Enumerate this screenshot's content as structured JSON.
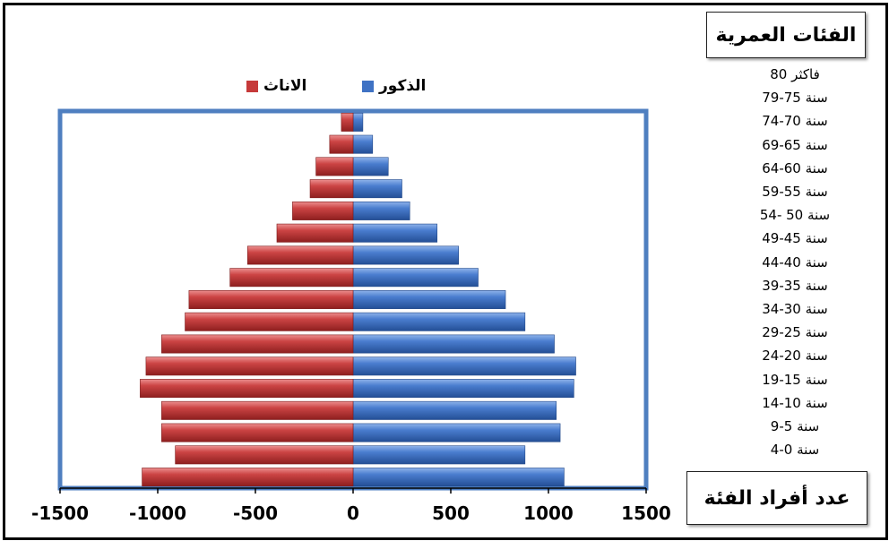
{
  "chart_data": {
    "type": "bar",
    "orientation": "horizontal",
    "title": "الفئات العمرية",
    "xlabel": "عدد أفراد الفئة",
    "xlim": [
      -1500,
      1500
    ],
    "x_ticks": [
      -1500,
      -1000,
      -500,
      0,
      500,
      1000,
      1500
    ],
    "x_tick_labels": [
      "-1500",
      "-1000",
      "-500",
      "0",
      "500",
      "1000",
      "1500"
    ],
    "legend_position": "top",
    "categories": [
      "80 فاكثر",
      "79-75 سنة",
      "74-70 سنة",
      "69-65 سنة",
      "64-60 سنة",
      "59-55 سنة",
      "54- 50 سنة",
      "49-45 سنة",
      "44-40 سنة",
      "39-35 سنة",
      "34-30 سنة",
      "29-25 سنة",
      "24-20 سنة",
      "19-15 سنة",
      "14-10 سنة",
      "9-5 سنة",
      "4-0 سنة"
    ],
    "series": [
      {
        "name": "الذكور",
        "color": "#3f72c4",
        "values": [
          50,
          100,
          180,
          250,
          290,
          430,
          540,
          640,
          780,
          880,
          1030,
          1140,
          1130,
          1040,
          1060,
          880,
          1080
        ]
      },
      {
        "name": "الاناث",
        "color": "#c63a3a",
        "values": [
          60,
          120,
          190,
          220,
          310,
          390,
          540,
          630,
          840,
          860,
          980,
          1060,
          1090,
          980,
          980,
          910,
          1080
        ]
      }
    ]
  }
}
